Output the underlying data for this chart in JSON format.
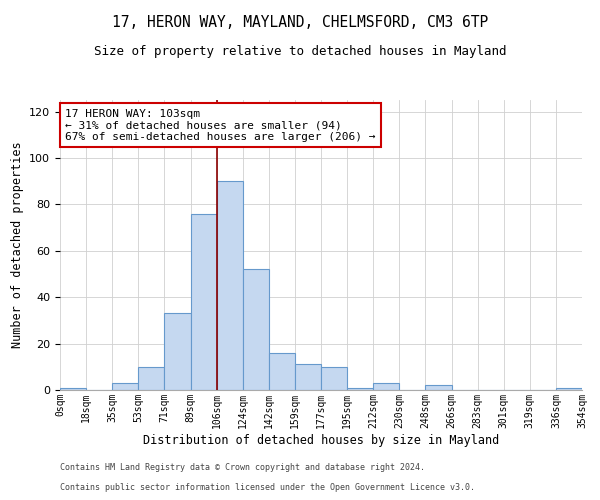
{
  "title1": "17, HERON WAY, MAYLAND, CHELMSFORD, CM3 6TP",
  "title2": "Size of property relative to detached houses in Mayland",
  "xlabel": "Distribution of detached houses by size in Mayland",
  "ylabel": "Number of detached properties",
  "footer1": "Contains HM Land Registry data © Crown copyright and database right 2024.",
  "footer2": "Contains public sector information licensed under the Open Government Licence v3.0.",
  "bin_labels": [
    "0sqm",
    "18sqm",
    "35sqm",
    "53sqm",
    "71sqm",
    "89sqm",
    "106sqm",
    "124sqm",
    "142sqm",
    "159sqm",
    "177sqm",
    "195sqm",
    "212sqm",
    "230sqm",
    "248sqm",
    "266sqm",
    "283sqm",
    "301sqm",
    "319sqm",
    "336sqm",
    "354sqm"
  ],
  "bar_values": [
    1,
    0,
    3,
    10,
    33,
    76,
    90,
    52,
    16,
    11,
    10,
    1,
    3,
    0,
    2,
    0,
    0,
    0,
    0,
    1
  ],
  "bar_color": "#c5d8f0",
  "bar_edge_color": "#6699cc",
  "ylim": [
    0,
    125
  ],
  "yticks": [
    0,
    20,
    40,
    60,
    80,
    100,
    120
  ],
  "vline_color": "#8b0000",
  "vline_x": 6.0,
  "annotation_text": "17 HERON WAY: 103sqm\n← 31% of detached houses are smaller (94)\n67% of semi-detached houses are larger (206) →",
  "annotation_box_color": "#ffffff",
  "annotation_box_edge": "#cc0000",
  "background_color": "#ffffff",
  "grid_color": "#d0d0d0",
  "title1_fontsize": 10.5,
  "title2_fontsize": 9,
  "annot_fontsize": 8,
  "ylabel_fontsize": 8.5,
  "xlabel_fontsize": 8.5,
  "tick_fontsize": 7,
  "footer_fontsize": 6
}
